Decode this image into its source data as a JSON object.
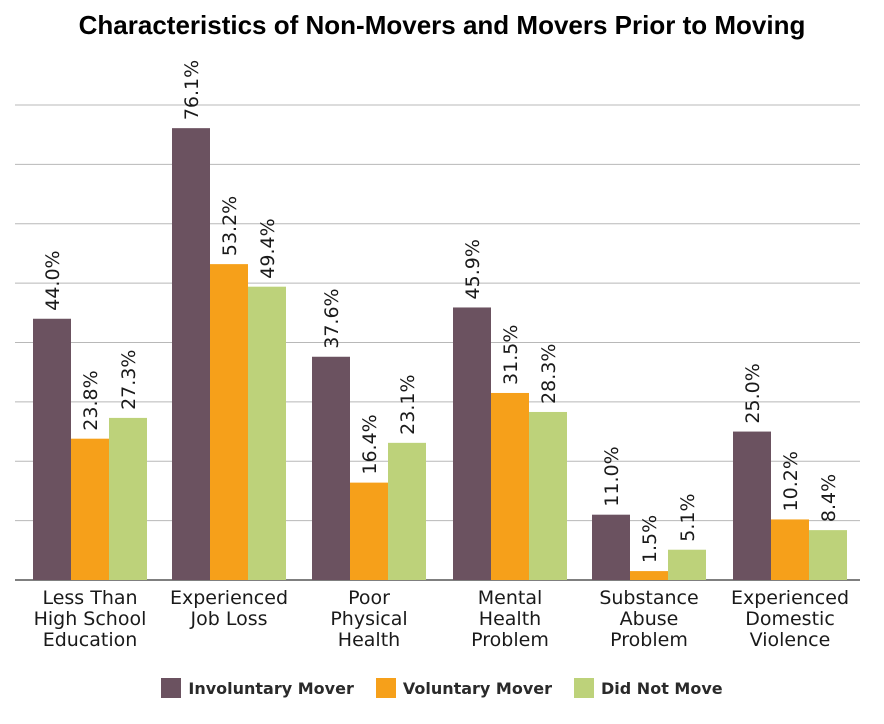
{
  "title": "Characteristics of Non-Movers and Movers Prior to Moving",
  "chart_data": {
    "type": "bar",
    "categories": [
      [
        "Less Than",
        "High School",
        "Education"
      ],
      [
        "Experienced",
        "Job Loss"
      ],
      [
        "Poor",
        "Physical",
        "Health"
      ],
      [
        "Mental",
        "Health",
        "Problem"
      ],
      [
        "Substance",
        "Abuse",
        "Problem"
      ],
      [
        "Experienced",
        "Domestic",
        "Violence"
      ]
    ],
    "series": [
      {
        "name": "Involuntary Mover",
        "color": "#6b5260",
        "values": [
          44.0,
          76.1,
          37.6,
          45.9,
          11.0,
          25.0
        ],
        "labels": [
          "44.0%",
          "76.1%",
          "37.6%",
          "45.9%",
          "11.0%",
          "25.0%"
        ]
      },
      {
        "name": "Voluntary Mover",
        "color": "#f6a01a",
        "values": [
          23.8,
          53.2,
          16.4,
          31.5,
          1.5,
          10.2
        ],
        "labels": [
          "23.8%",
          "53.2%",
          "16.4%",
          "31.5%",
          "1.5%",
          "10.2%"
        ]
      },
      {
        "name": "Did Not Move",
        "color": "#bdd27a",
        "values": [
          27.3,
          49.4,
          23.1,
          28.3,
          5.1,
          8.4
        ],
        "labels": [
          "27.3%",
          "49.4%",
          "23.1%",
          "28.3%",
          "5.1%",
          "8.4%"
        ]
      }
    ],
    "ylim": [
      0,
      80
    ],
    "grid": true,
    "legend_position": "bottom"
  }
}
